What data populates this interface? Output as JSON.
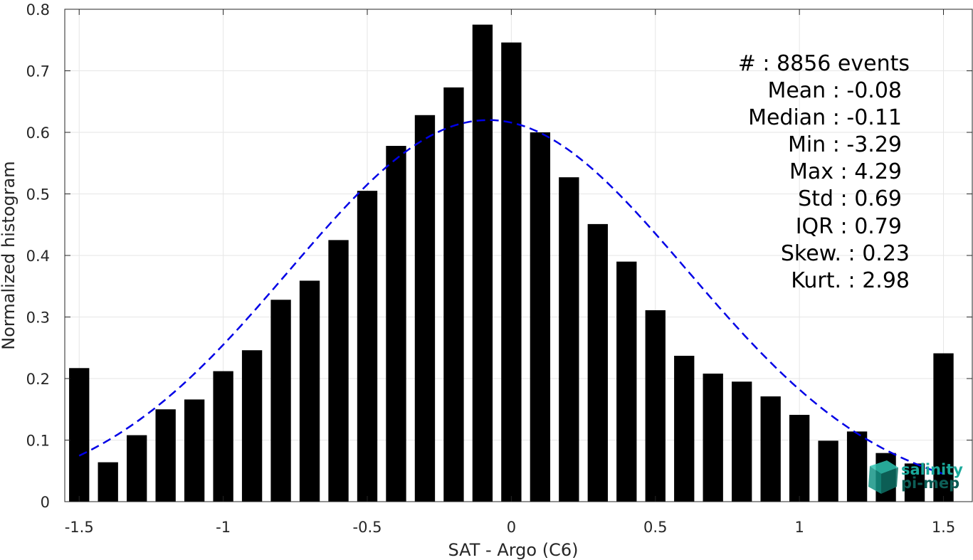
{
  "chart_data": {
    "type": "bar",
    "xlabel": "SAT - Argo (C6)",
    "ylabel": "Normalized histogram",
    "xlim": [
      -1.55,
      1.6
    ],
    "ylim": [
      0,
      0.8
    ],
    "xticks": [
      -1.5,
      -1,
      -0.5,
      0,
      0.5,
      1,
      1.5
    ],
    "xtick_labels": [
      "-1.5",
      "-1",
      "-0.5",
      "0",
      "0.5",
      "1",
      "1.5"
    ],
    "yticks": [
      0,
      0.1,
      0.2,
      0.3,
      0.4,
      0.5,
      0.6,
      0.7,
      0.8
    ],
    "ytick_labels": [
      "0",
      "0.1",
      "0.2",
      "0.3",
      "0.4",
      "0.5",
      "0.6",
      "0.7",
      "0.8"
    ],
    "grid": true,
    "bar_color": "#000000",
    "bars": [
      {
        "x": -1.5,
        "y": 0.217
      },
      {
        "x": -1.4,
        "y": 0.064
      },
      {
        "x": -1.3,
        "y": 0.108
      },
      {
        "x": -1.2,
        "y": 0.15
      },
      {
        "x": -1.1,
        "y": 0.166
      },
      {
        "x": -1.0,
        "y": 0.212
      },
      {
        "x": -0.9,
        "y": 0.246
      },
      {
        "x": -0.8,
        "y": 0.328
      },
      {
        "x": -0.7,
        "y": 0.359
      },
      {
        "x": -0.6,
        "y": 0.425
      },
      {
        "x": -0.5,
        "y": 0.505
      },
      {
        "x": -0.4,
        "y": 0.578
      },
      {
        "x": -0.3,
        "y": 0.628
      },
      {
        "x": -0.2,
        "y": 0.673
      },
      {
        "x": -0.1,
        "y": 0.775
      },
      {
        "x": 0.0,
        "y": 0.746
      },
      {
        "x": 0.1,
        "y": 0.6
      },
      {
        "x": 0.2,
        "y": 0.527
      },
      {
        "x": 0.3,
        "y": 0.451
      },
      {
        "x": 0.4,
        "y": 0.39
      },
      {
        "x": 0.5,
        "y": 0.311
      },
      {
        "x": 0.6,
        "y": 0.237
      },
      {
        "x": 0.7,
        "y": 0.208
      },
      {
        "x": 0.8,
        "y": 0.195
      },
      {
        "x": 0.9,
        "y": 0.171
      },
      {
        "x": 1.0,
        "y": 0.141
      },
      {
        "x": 1.1,
        "y": 0.099
      },
      {
        "x": 1.2,
        "y": 0.114
      },
      {
        "x": 1.3,
        "y": 0.079
      },
      {
        "x": 1.4,
        "y": 0.062
      },
      {
        "x": 1.5,
        "y": 0.241
      }
    ],
    "fit_curve": {
      "type": "gaussian",
      "style": "dashed",
      "color": "#0000e6",
      "mean": -0.08,
      "peak": 0.62,
      "std": 0.69,
      "x_range": [
        -1.5,
        1.5
      ]
    },
    "stats": [
      {
        "label": "#",
        "value": ": 8856 events"
      },
      {
        "label": "Mean",
        "value": ": -0.08"
      },
      {
        "label": "Median",
        "value": ": -0.11"
      },
      {
        "label": "Min",
        "value": ": -3.29"
      },
      {
        "label": "Max",
        "value": ": 4.29"
      },
      {
        "label": "Std",
        "value": ": 0.69"
      },
      {
        "label": "IQR",
        "value": ": 0.79"
      },
      {
        "label": "Skew.",
        "value": ": 0.23"
      },
      {
        "label": "Kurt.",
        "value": ": 2.98"
      }
    ]
  },
  "logo": {
    "line1": "salinity",
    "line2": "pi-mep",
    "color": "#1aa89a",
    "dark_color": "#0d5e57"
  }
}
